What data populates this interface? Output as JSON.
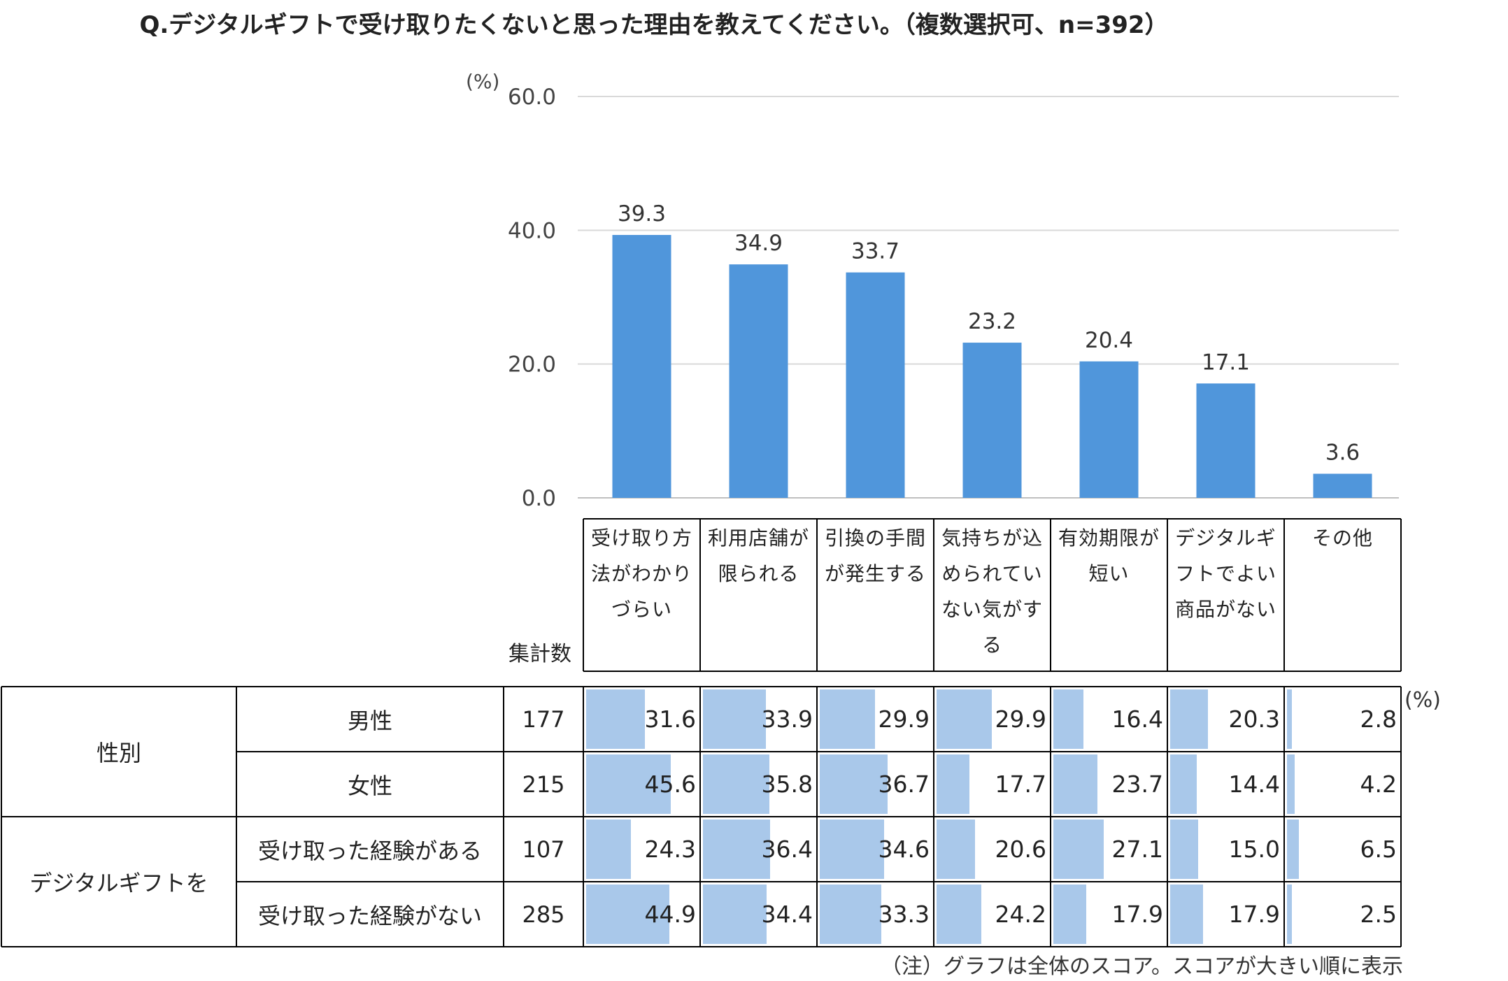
{
  "title": "Q.デジタルギフトで受け取りたくないと思った理由を教えてください。（複数選択可、n=392）",
  "colors": {
    "bar": "#5096db",
    "cell_bar": "#a9c8ea",
    "grid": "#d9d9d9",
    "border": "#000000"
  },
  "chart_data": {
    "type": "bar",
    "unit_label": "(%)",
    "categories": [
      "受け取り方法がわかりづらい",
      "利用店舗が限られる",
      "引換の手間が発生する",
      "気持ちが込められていない気がする",
      "有効期限が短い",
      "デジタルギフトでよい商品がない",
      "その他"
    ],
    "values": [
      39.3,
      34.9,
      33.7,
      23.2,
      20.4,
      17.1,
      3.6
    ],
    "value_labels": [
      "39.3",
      "34.9",
      "33.7",
      "23.2",
      "20.4",
      "17.1",
      "3.6"
    ],
    "ylim": [
      0,
      60
    ],
    "yticks": [
      "0.0",
      "20.0",
      "40.0",
      "60.0"
    ],
    "ytick_values": [
      0,
      20,
      40,
      60
    ],
    "grid": true
  },
  "table": {
    "sample_header": "集計数",
    "unit": "(%)",
    "groups": [
      {
        "label": "性別",
        "rows": [
          {
            "label": "男性",
            "n": "177",
            "values": [
              "31.6",
              "33.9",
              "29.9",
              "29.9",
              "16.4",
              "20.3",
              "2.8"
            ]
          },
          {
            "label": "女性",
            "n": "215",
            "values": [
              "45.6",
              "35.8",
              "36.7",
              "17.7",
              "23.7",
              "14.4",
              "4.2"
            ]
          }
        ]
      },
      {
        "label": "デジタルギフトを",
        "rows": [
          {
            "label": "受け取った経験がある",
            "n": "107",
            "values": [
              "24.3",
              "36.4",
              "34.6",
              "20.6",
              "27.1",
              "15.0",
              "6.5"
            ]
          },
          {
            "label": "受け取った経験がない",
            "n": "285",
            "values": [
              "44.9",
              "34.4",
              "33.3",
              "24.2",
              "17.9",
              "17.9",
              "2.5"
            ]
          }
        ]
      }
    ]
  },
  "footnote": "（注）グラフは全体のスコア。スコアが大きい順に表示"
}
